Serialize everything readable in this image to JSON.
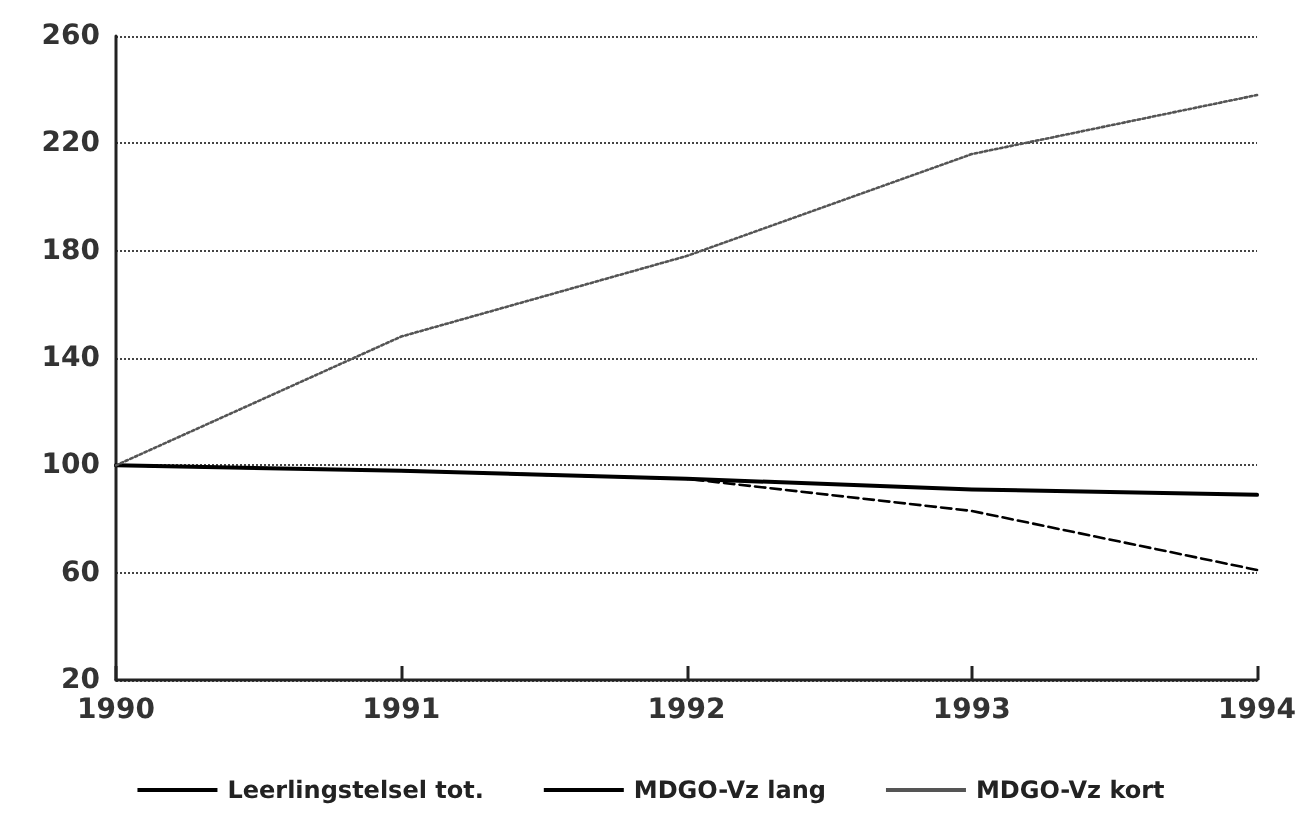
{
  "chart_data": {
    "type": "line",
    "x": [
      1990,
      1991,
      1992,
      1993,
      1994
    ],
    "series": [
      {
        "name": "Leerlingstelsel tot.",
        "color": "#000000",
        "line_style": "dashed",
        "values": [
          100,
          98,
          95,
          83,
          61
        ]
      },
      {
        "name": "MDGO-Vz lang",
        "color": "#000000",
        "line_style": "solid",
        "values": [
          100,
          98,
          95,
          91,
          89
        ]
      },
      {
        "name": "MDGO-Vz kort",
        "color": "#555555",
        "line_style": "dotted",
        "values": [
          100,
          148,
          178,
          216,
          238
        ]
      }
    ],
    "xlim": [
      1990,
      1994
    ],
    "xticks": [
      1990,
      1991,
      1992,
      1993,
      1994
    ],
    "ylim": [
      20,
      260
    ],
    "yticks": [
      20,
      60,
      100,
      140,
      180,
      220,
      260
    ],
    "grid": "y",
    "legend": "bottom",
    "marker": "none"
  }
}
